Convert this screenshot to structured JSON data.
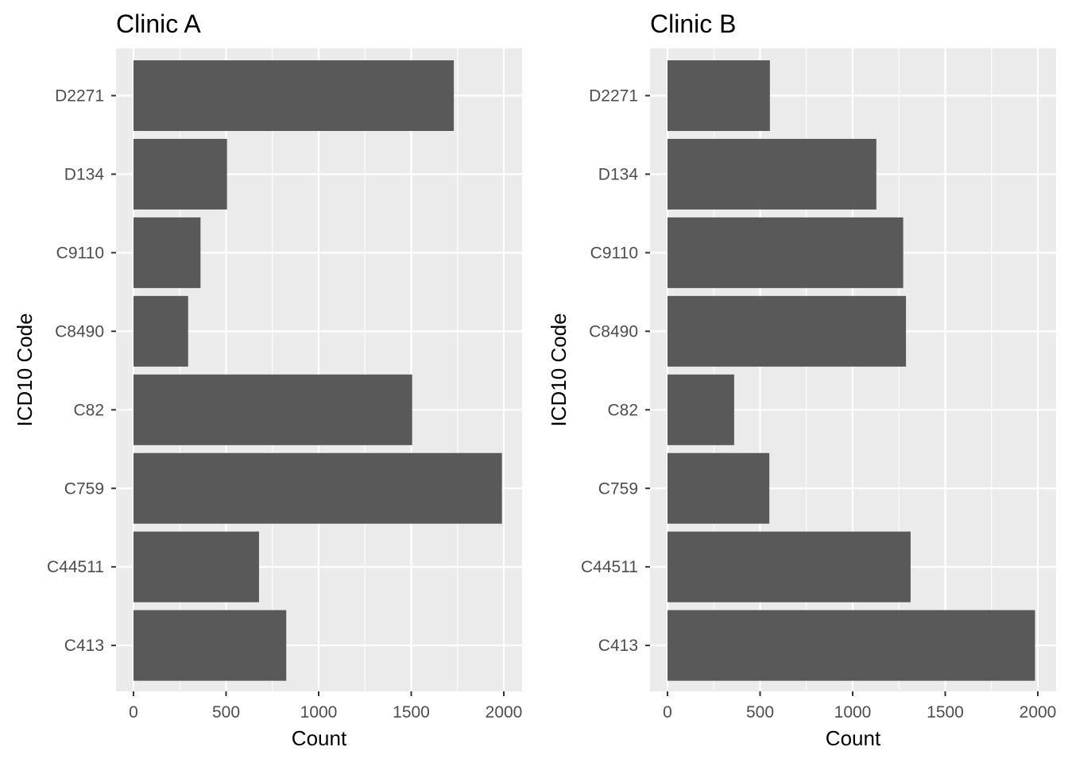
{
  "chart_data": [
    {
      "type": "bar",
      "orientation": "horizontal",
      "title": "Clinic A",
      "xlabel": "Count",
      "ylabel": "ICD10 Code",
      "categories": [
        "D2271",
        "D134",
        "C9110",
        "C8490",
        "C82",
        "C759",
        "C44511",
        "C413"
      ],
      "values": [
        1730,
        505,
        362,
        295,
        1505,
        1990,
        678,
        825
      ],
      "xlim": [
        0,
        2000
      ],
      "xticks": [
        "0",
        "500",
        "1000",
        "1500",
        "2000"
      ],
      "grid": true,
      "legend": "none"
    },
    {
      "type": "bar",
      "orientation": "horizontal",
      "title": "Clinic B",
      "xlabel": "Count",
      "ylabel": "ICD10 Code",
      "categories": [
        "D2271",
        "D134",
        "C9110",
        "C8490",
        "C82",
        "C759",
        "C44511",
        "C413"
      ],
      "values": [
        553,
        1128,
        1273,
        1288,
        360,
        550,
        1313,
        1985
      ],
      "xlim": [
        0,
        2000
      ],
      "xticks": [
        "0",
        "500",
        "1000",
        "1500",
        "2000"
      ],
      "grid": true,
      "legend": "none"
    }
  ],
  "colors": {
    "bar": "#595959",
    "panel_background": "#ebebeb",
    "grid": "#ffffff",
    "tick_text": "#4d4d4d"
  }
}
